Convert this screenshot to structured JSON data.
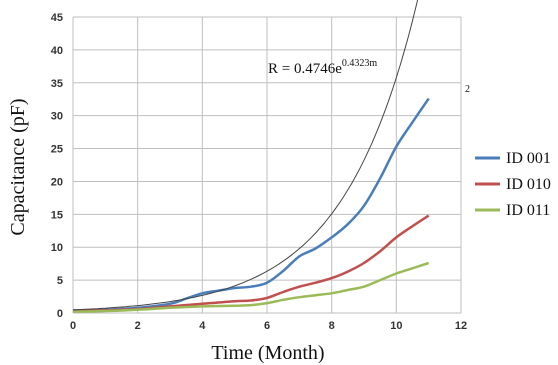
{
  "chart_data": {
    "type": "line",
    "xlabel": "Time (Month)",
    "ylabel": "Capacitance (pF)",
    "xlim": [
      0,
      12
    ],
    "ylim": [
      0,
      45
    ],
    "x_ticks": [
      "0",
      "2",
      "4",
      "6",
      "8",
      "10",
      "12"
    ],
    "y_ticks": [
      "0",
      "5",
      "10",
      "15",
      "20",
      "25",
      "30",
      "35",
      "40",
      "45"
    ],
    "grid": true,
    "legend_position": "right",
    "annotation": {
      "base": "R = 0.4746e",
      "exponent": "0.4323m",
      "suffix": "2"
    },
    "series": [
      {
        "name": "ID 001",
        "color": "#4a7ebb",
        "x": [
          0,
          1,
          2,
          3,
          3.5,
          4,
          4.5,
          5,
          5.5,
          6,
          6.5,
          7,
          7.5,
          8,
          8.5,
          9,
          9.5,
          10,
          10.5,
          11
        ],
        "y": [
          0.4,
          0.5,
          0.8,
          1.4,
          2.2,
          3.0,
          3.4,
          3.8,
          4.0,
          4.6,
          6.4,
          8.6,
          9.8,
          11.5,
          13.5,
          16.3,
          20.5,
          25.3,
          29.0,
          32.6
        ]
      },
      {
        "name": "ID 010",
        "color": "#c0504d",
        "x": [
          0,
          1,
          2,
          3,
          4,
          5,
          5.5,
          6,
          6.5,
          7,
          7.5,
          8,
          8.5,
          9,
          9.5,
          10,
          10.5,
          11
        ],
        "y": [
          0.3,
          0.4,
          0.6,
          1.0,
          1.4,
          1.8,
          1.9,
          2.3,
          3.2,
          4.0,
          4.6,
          5.3,
          6.3,
          7.6,
          9.4,
          11.5,
          13.2,
          14.8
        ]
      },
      {
        "name": "ID 011",
        "color": "#9bbb59",
        "x": [
          0,
          1,
          2,
          3,
          4,
          5,
          5.5,
          6,
          6.5,
          7,
          7.5,
          8,
          8.5,
          9,
          9.5,
          10,
          10.5,
          11
        ],
        "y": [
          0.2,
          0.3,
          0.5,
          0.8,
          1.0,
          1.1,
          1.2,
          1.5,
          2.0,
          2.4,
          2.7,
          3.0,
          3.5,
          4.0,
          5.0,
          6.0,
          6.8,
          7.6
        ]
      }
    ],
    "trendline": {
      "name": "R = 0.4746e^(0.4323m)",
      "color": "#444444",
      "a": 0.4746,
      "b": 0.4323,
      "x_range": [
        0,
        11
      ]
    }
  }
}
